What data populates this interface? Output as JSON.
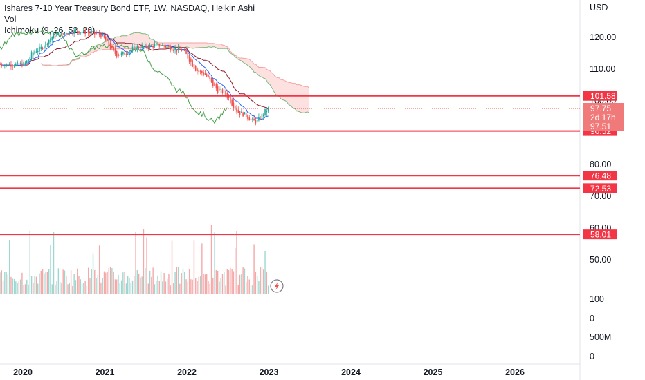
{
  "chart_data": {
    "type": "candlestick",
    "title": "Ishares 7-10 Year Treasury Bond ETF, 1W, NASDAQ, Heikin Ashi",
    "indicators": [
      "Vol",
      "Ichimoku (9, 26, 52, 26)"
    ],
    "currency": "USD",
    "price_axis": {
      "ticks": [
        "120.00",
        "110.00",
        "100.00",
        "80.00",
        "70.00",
        "60.00",
        "50.00"
      ]
    },
    "volume_axis": {
      "ticks": [
        "100",
        "0",
        "500M",
        "0"
      ]
    },
    "time_axis": [
      "2020",
      "2021",
      "2022",
      "2023",
      "2024",
      "2025",
      "2026"
    ],
    "horizontal_levels": [
      "101.58",
      "90.52",
      "76.48",
      "72.53",
      "58.01"
    ],
    "last_price": {
      "price": "97.75",
      "countdown": "2d 17h",
      "ha_close": "97.51"
    },
    "price_series_approx": [
      {
        "x": "2020-01",
        "close": 111.5
      },
      {
        "x": "2020-03",
        "close": 116
      },
      {
        "x": "2020-06",
        "close": 121
      },
      {
        "x": "2020-09",
        "close": 122
      },
      {
        "x": "2020-12",
        "close": 121
      },
      {
        "x": "2021-03",
        "close": 114.5
      },
      {
        "x": "2021-06",
        "close": 117
      },
      {
        "x": "2021-09",
        "close": 117.5
      },
      {
        "x": "2021-12",
        "close": 116
      },
      {
        "x": "2022-03",
        "close": 109
      },
      {
        "x": "2022-06",
        "close": 103
      },
      {
        "x": "2022-09",
        "close": 96
      },
      {
        "x": "2022-11",
        "close": 93.5
      },
      {
        "x": "2023-01",
        "close": 97.5
      }
    ],
    "colors": {
      "level_line": "#f23645",
      "up": "#26a69a",
      "down": "#ef5350",
      "kumo_fill": "#fcdada",
      "base_line": "#8b1a2b",
      "conversion_line": "#2962ff",
      "lagging_span": "#43a047"
    }
  },
  "legend": {
    "title": "Ishares 7-10 Year Treasury Bond ETF, 1W, NASDAQ, Heikin Ashi",
    "vol": "Vol",
    "ichimoku": "Ichimoku (9, 26, 52, 26)"
  },
  "icons": {
    "flash": "lightning-icon"
  }
}
